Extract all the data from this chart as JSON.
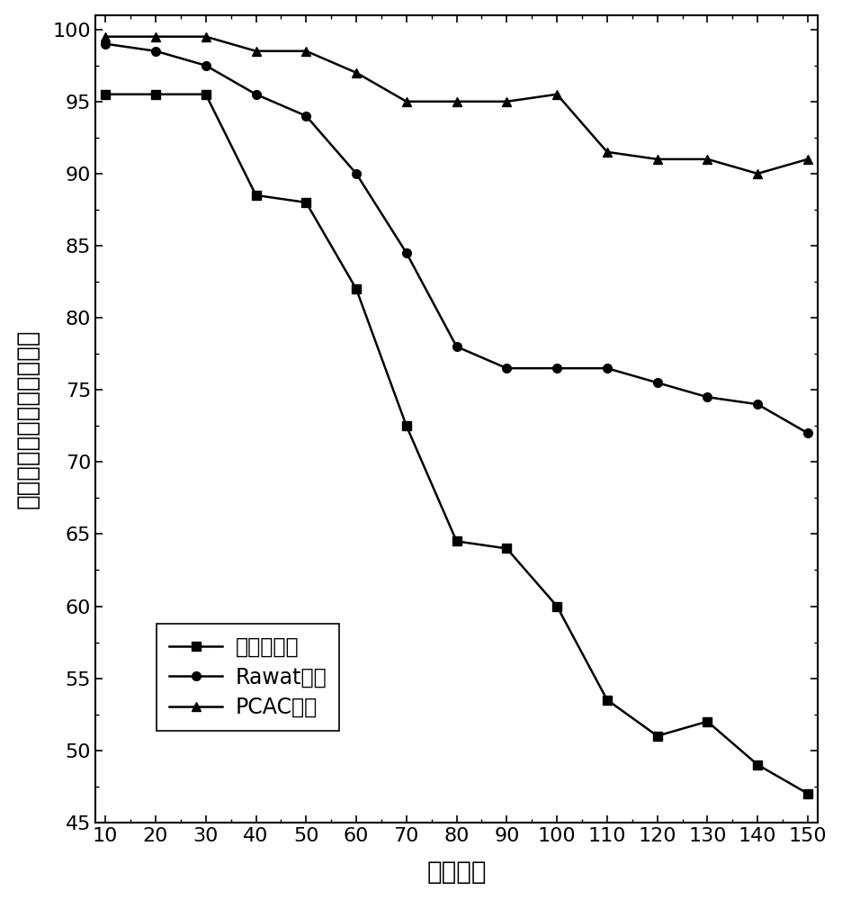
{
  "x": [
    10,
    20,
    30,
    40,
    50,
    60,
    70,
    80,
    90,
    100,
    110,
    120,
    130,
    140,
    150
  ],
  "fixed_value": [
    95.5,
    95.5,
    95.5,
    88.5,
    88.0,
    82.0,
    72.5,
    64.5,
    64.0,
    60.0,
    53.5,
    51.0,
    52.0,
    49.0,
    47.0
  ],
  "rawat": [
    99.0,
    98.5,
    97.5,
    95.5,
    94.0,
    90.0,
    84.5,
    78.0,
    76.5,
    76.5,
    76.5,
    75.5,
    74.5,
    74.0,
    72.0
  ],
  "pcac": [
    99.5,
    99.5,
    99.5,
    98.5,
    98.5,
    97.0,
    95.0,
    95.0,
    95.0,
    95.5,
    91.5,
    91.0,
    91.0,
    90.0,
    91.0
  ],
  "xlabel": "节点数量",
  "ylabel": "紧急消息的包投递率（％）",
  "legend_fixed": "固定値算法",
  "legend_rawat": "Rawat算法",
  "legend_pcac": "PCAC算法",
  "xlim_min": 8,
  "xlim_max": 152,
  "ylim_min": 45,
  "ylim_max": 101,
  "yticks": [
    45,
    50,
    55,
    60,
    65,
    70,
    75,
    80,
    85,
    90,
    95,
    100
  ],
  "xticks": [
    10,
    20,
    30,
    40,
    50,
    60,
    70,
    80,
    90,
    100,
    110,
    120,
    130,
    140,
    150
  ],
  "line_color": "#000000",
  "marker_square": "s",
  "marker_circle": "o",
  "marker_triangle": "^",
  "markersize": 7,
  "linewidth": 1.8,
  "tick_labelsize": 16,
  "axis_labelsize": 20,
  "legend_fontsize": 17
}
